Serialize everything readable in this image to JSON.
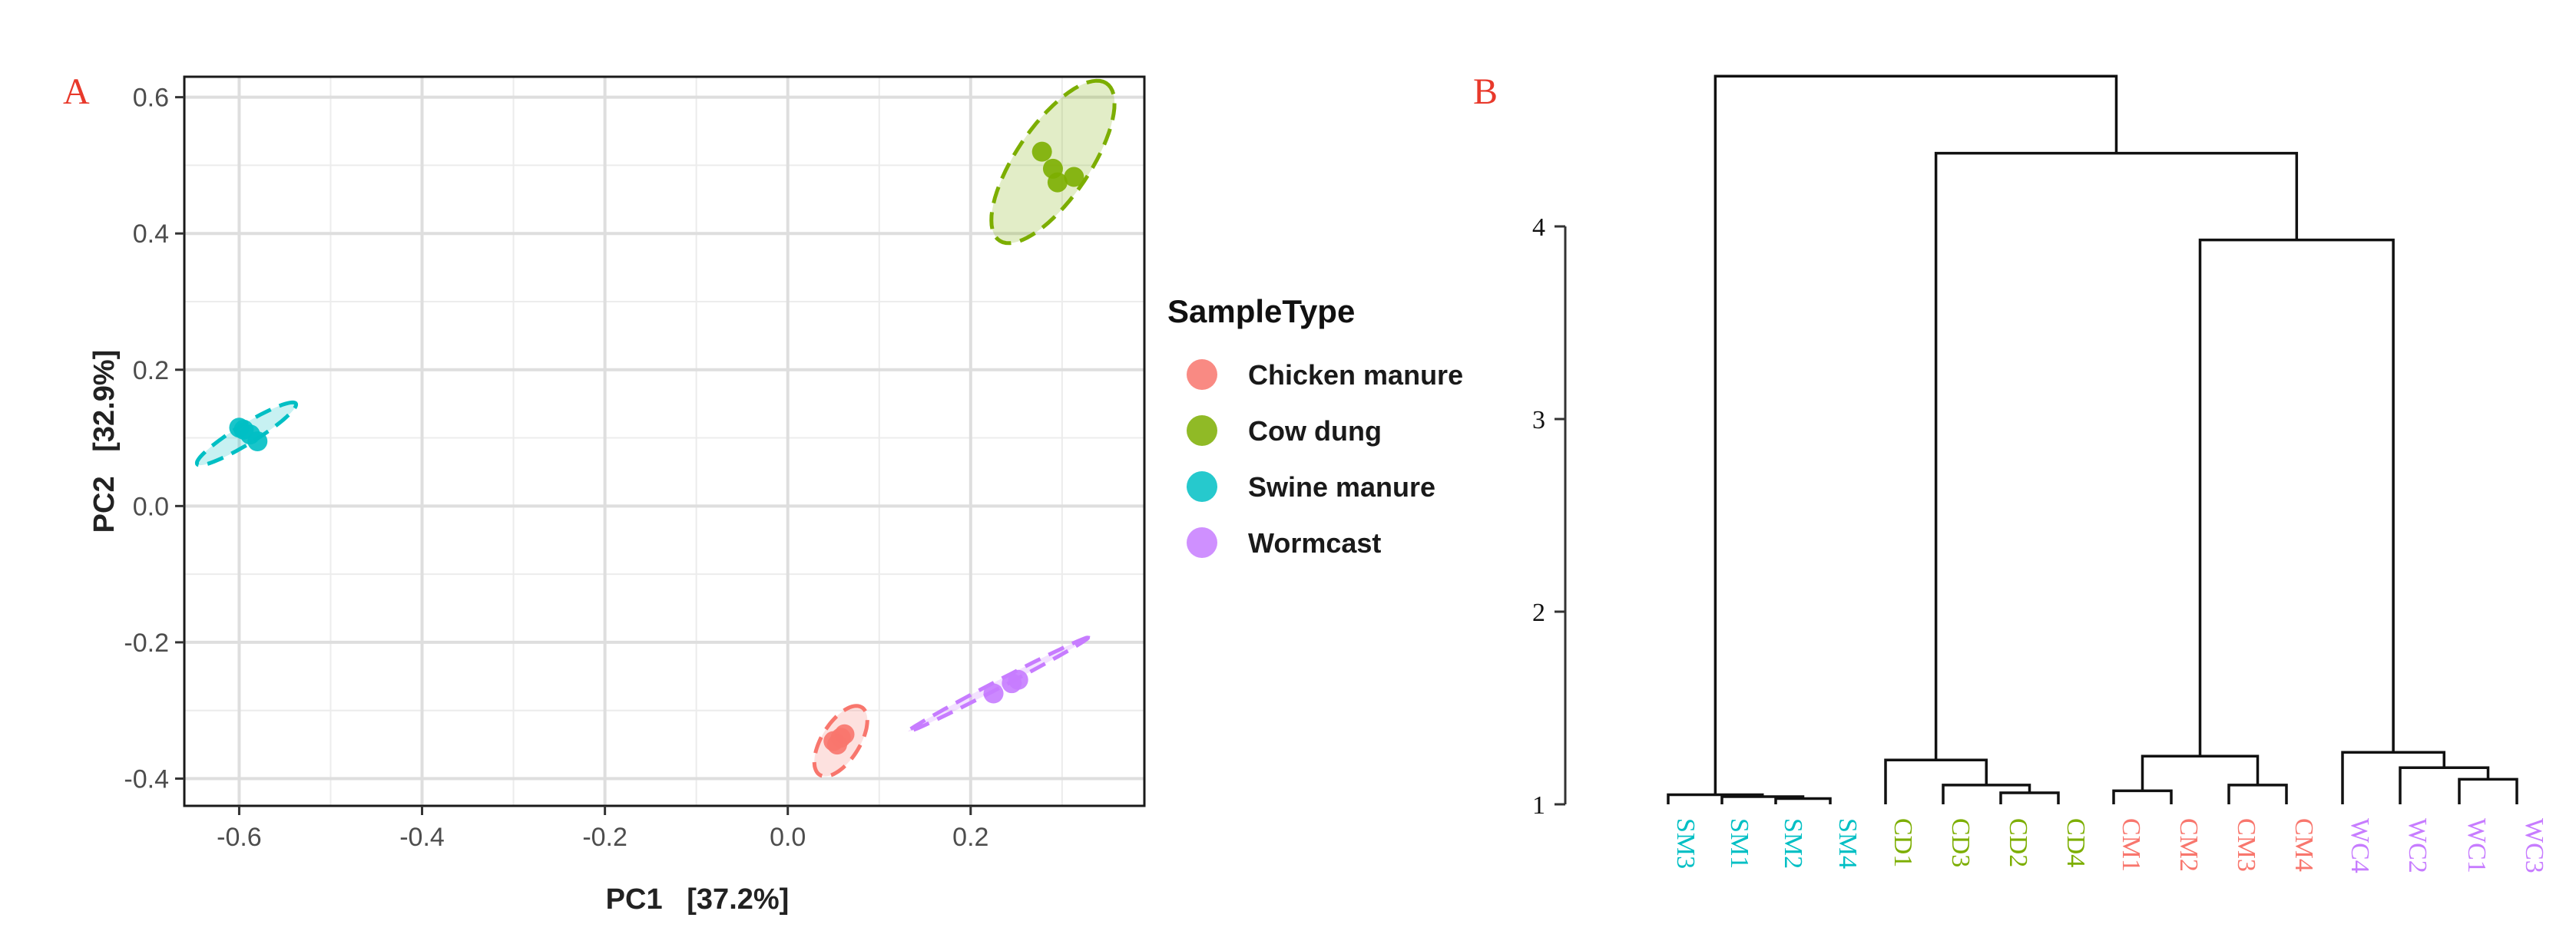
{
  "colors": {
    "chicken": "#F8766D",
    "cow": "#7CAE00",
    "swine": "#00BFC4",
    "worm": "#C77CFF",
    "panel_label": "#E8392B",
    "axis_text": "#4D4D4D"
  },
  "panels": {
    "a": "A",
    "b": "B"
  },
  "chart_data": [
    {
      "type": "scatter",
      "panel": "A",
      "xlabel": "PC1   [37.2%]",
      "ylabel": "PC2   [32.9%]",
      "xlim": [
        -0.66,
        0.39
      ],
      "ylim": [
        -0.44,
        0.63
      ],
      "xticks": [
        -0.6,
        -0.4,
        -0.2,
        0.0,
        0.2
      ],
      "xtick_labels": [
        "-0.6",
        "-0.4",
        "-0.2",
        "0.0",
        "0.2"
      ],
      "yticks": [
        -0.4,
        -0.2,
        0.0,
        0.2,
        0.4,
        0.6
      ],
      "ytick_labels": [
        "-0.4",
        "-0.2",
        "0.0",
        "0.2",
        "0.4",
        "0.6"
      ],
      "grid": true,
      "legend": {
        "title": "SampleType",
        "placement": "right",
        "entries": [
          "Chicken manure",
          "Cow dung",
          "Swine manure",
          "Wormcast"
        ]
      },
      "series": [
        {
          "name": "Chicken manure",
          "color": "#F8766D",
          "x": [
            0.05,
            0.062,
            0.058,
            0.054
          ],
          "y": [
            -0.345,
            -0.335,
            -0.34,
            -0.35
          ],
          "ellipse": {
            "cx": 0.058,
            "cy": -0.345,
            "rx": 0.055,
            "ry": 0.022,
            "angle_deg": 68
          }
        },
        {
          "name": "Cow dung",
          "color": "#7CAE00",
          "x": [
            0.278,
            0.29,
            0.295,
            0.313
          ],
          "y": [
            0.52,
            0.495,
            0.475,
            0.483
          ],
          "ellipse": {
            "cx": 0.29,
            "cy": 0.505,
            "rx": 0.13,
            "ry": 0.043,
            "angle_deg": 65
          }
        },
        {
          "name": "Swine manure",
          "color": "#00BFC4",
          "x": [
            -0.6,
            -0.595,
            -0.588,
            -0.58
          ],
          "y": [
            0.115,
            0.112,
            0.105,
            0.095
          ],
          "ellipse": {
            "cx": -0.592,
            "cy": 0.106,
            "rx": 0.07,
            "ry": 0.013,
            "angle_deg": 40
          }
        },
        {
          "name": "Wormcast",
          "color": "#C77CFF",
          "x": [
            0.225,
            0.245,
            0.252
          ],
          "y": [
            -0.275,
            -0.26,
            -0.255
          ],
          "ellipse": {
            "cx": 0.23,
            "cy": -0.262,
            "rx": 0.12,
            "ry": 0.005,
            "angle_deg": 35
          }
        }
      ]
    },
    {
      "type": "dendrogram",
      "panel": "B",
      "ylim": [
        1,
        4.8
      ],
      "yticks": [
        1,
        2,
        3,
        4
      ],
      "ytick_labels": [
        "1",
        "2",
        "3",
        "4"
      ],
      "leaves": [
        {
          "label": "SM3",
          "group": "Swine manure"
        },
        {
          "label": "SM1",
          "group": "Swine manure"
        },
        {
          "label": "SM2",
          "group": "Swine manure"
        },
        {
          "label": "SM4",
          "group": "Swine manure"
        },
        {
          "label": "CD1",
          "group": "Cow dung"
        },
        {
          "label": "CD3",
          "group": "Cow dung"
        },
        {
          "label": "CD2",
          "group": "Cow dung"
        },
        {
          "label": "CD4",
          "group": "Cow dung"
        },
        {
          "label": "CM1",
          "group": "Chicken manure"
        },
        {
          "label": "CM2",
          "group": "Chicken manure"
        },
        {
          "label": "CM3",
          "group": "Chicken manure"
        },
        {
          "label": "CM4",
          "group": "Chicken manure"
        },
        {
          "label": "WC4",
          "group": "Wormcast"
        },
        {
          "label": "WC2",
          "group": "Wormcast"
        },
        {
          "label": "WC1",
          "group": "Wormcast"
        },
        {
          "label": "WC3",
          "group": "Wormcast"
        }
      ],
      "merges": [
        {
          "a": 2,
          "b": 3,
          "h": 1.03
        },
        {
          "a": 1,
          "b": "m0",
          "h": 1.04
        },
        {
          "a": 0,
          "b": "m1",
          "h": 1.05
        },
        {
          "a": 6,
          "b": 7,
          "h": 1.06
        },
        {
          "a": 5,
          "b": "m3",
          "h": 1.1
        },
        {
          "a": 4,
          "b": "m4",
          "h": 1.23
        },
        {
          "a": 8,
          "b": 9,
          "h": 1.07
        },
        {
          "a": 10,
          "b": 11,
          "h": 1.1
        },
        {
          "a": "m6",
          "b": "m7",
          "h": 1.25
        },
        {
          "a": 14,
          "b": 15,
          "h": 1.13
        },
        {
          "a": 13,
          "b": "m9",
          "h": 1.19
        },
        {
          "a": 12,
          "b": "m10",
          "h": 1.27
        },
        {
          "a": "m8",
          "b": "m11",
          "h": 3.93
        },
        {
          "a": "m5",
          "b": "m12",
          "h": 4.38
        },
        {
          "a": "m2",
          "b": "m13",
          "h": 4.78
        }
      ]
    }
  ]
}
